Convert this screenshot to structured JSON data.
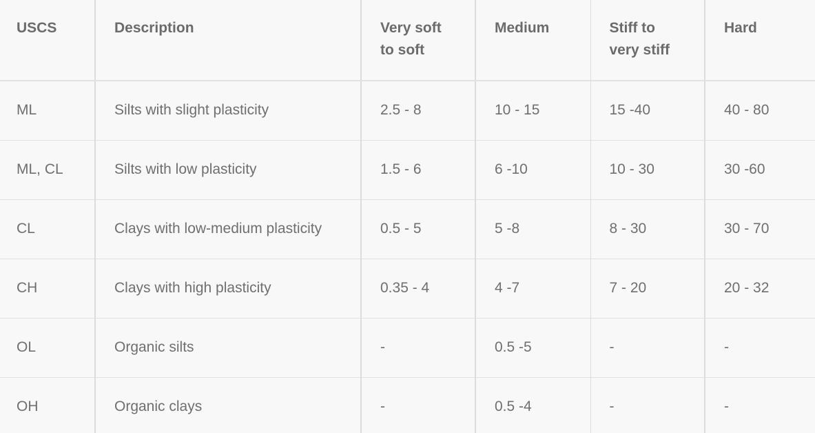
{
  "table": {
    "headers": [
      "USCS",
      "Description",
      "Very soft to soft",
      "Medium",
      "Stiff to very stiff",
      "Hard"
    ],
    "rows": [
      [
        "ML",
        "Silts with slight plasticity",
        "2.5 - 8",
        "10 - 15",
        "15 -40",
        "40 - 80"
      ],
      [
        "ML, CL",
        "Silts with low plasticity",
        "1.5 - 6",
        "6 -10",
        "10 - 30",
        "30 -60"
      ],
      [
        "CL",
        "Clays with low-medium plasticity",
        "0.5 - 5",
        "5 -8",
        "8 - 30",
        "30 - 70"
      ],
      [
        "CH",
        "Clays with high plasticity",
        "0.35 - 4",
        "4 -7",
        "7 - 20",
        "20 - 32"
      ],
      [
        "OL",
        "Organic silts",
        "-",
        "0.5 -5",
        "-",
        "-"
      ],
      [
        "OH",
        "Organic clays",
        "-",
        "0.5 -4",
        "-",
        "-"
      ]
    ]
  }
}
